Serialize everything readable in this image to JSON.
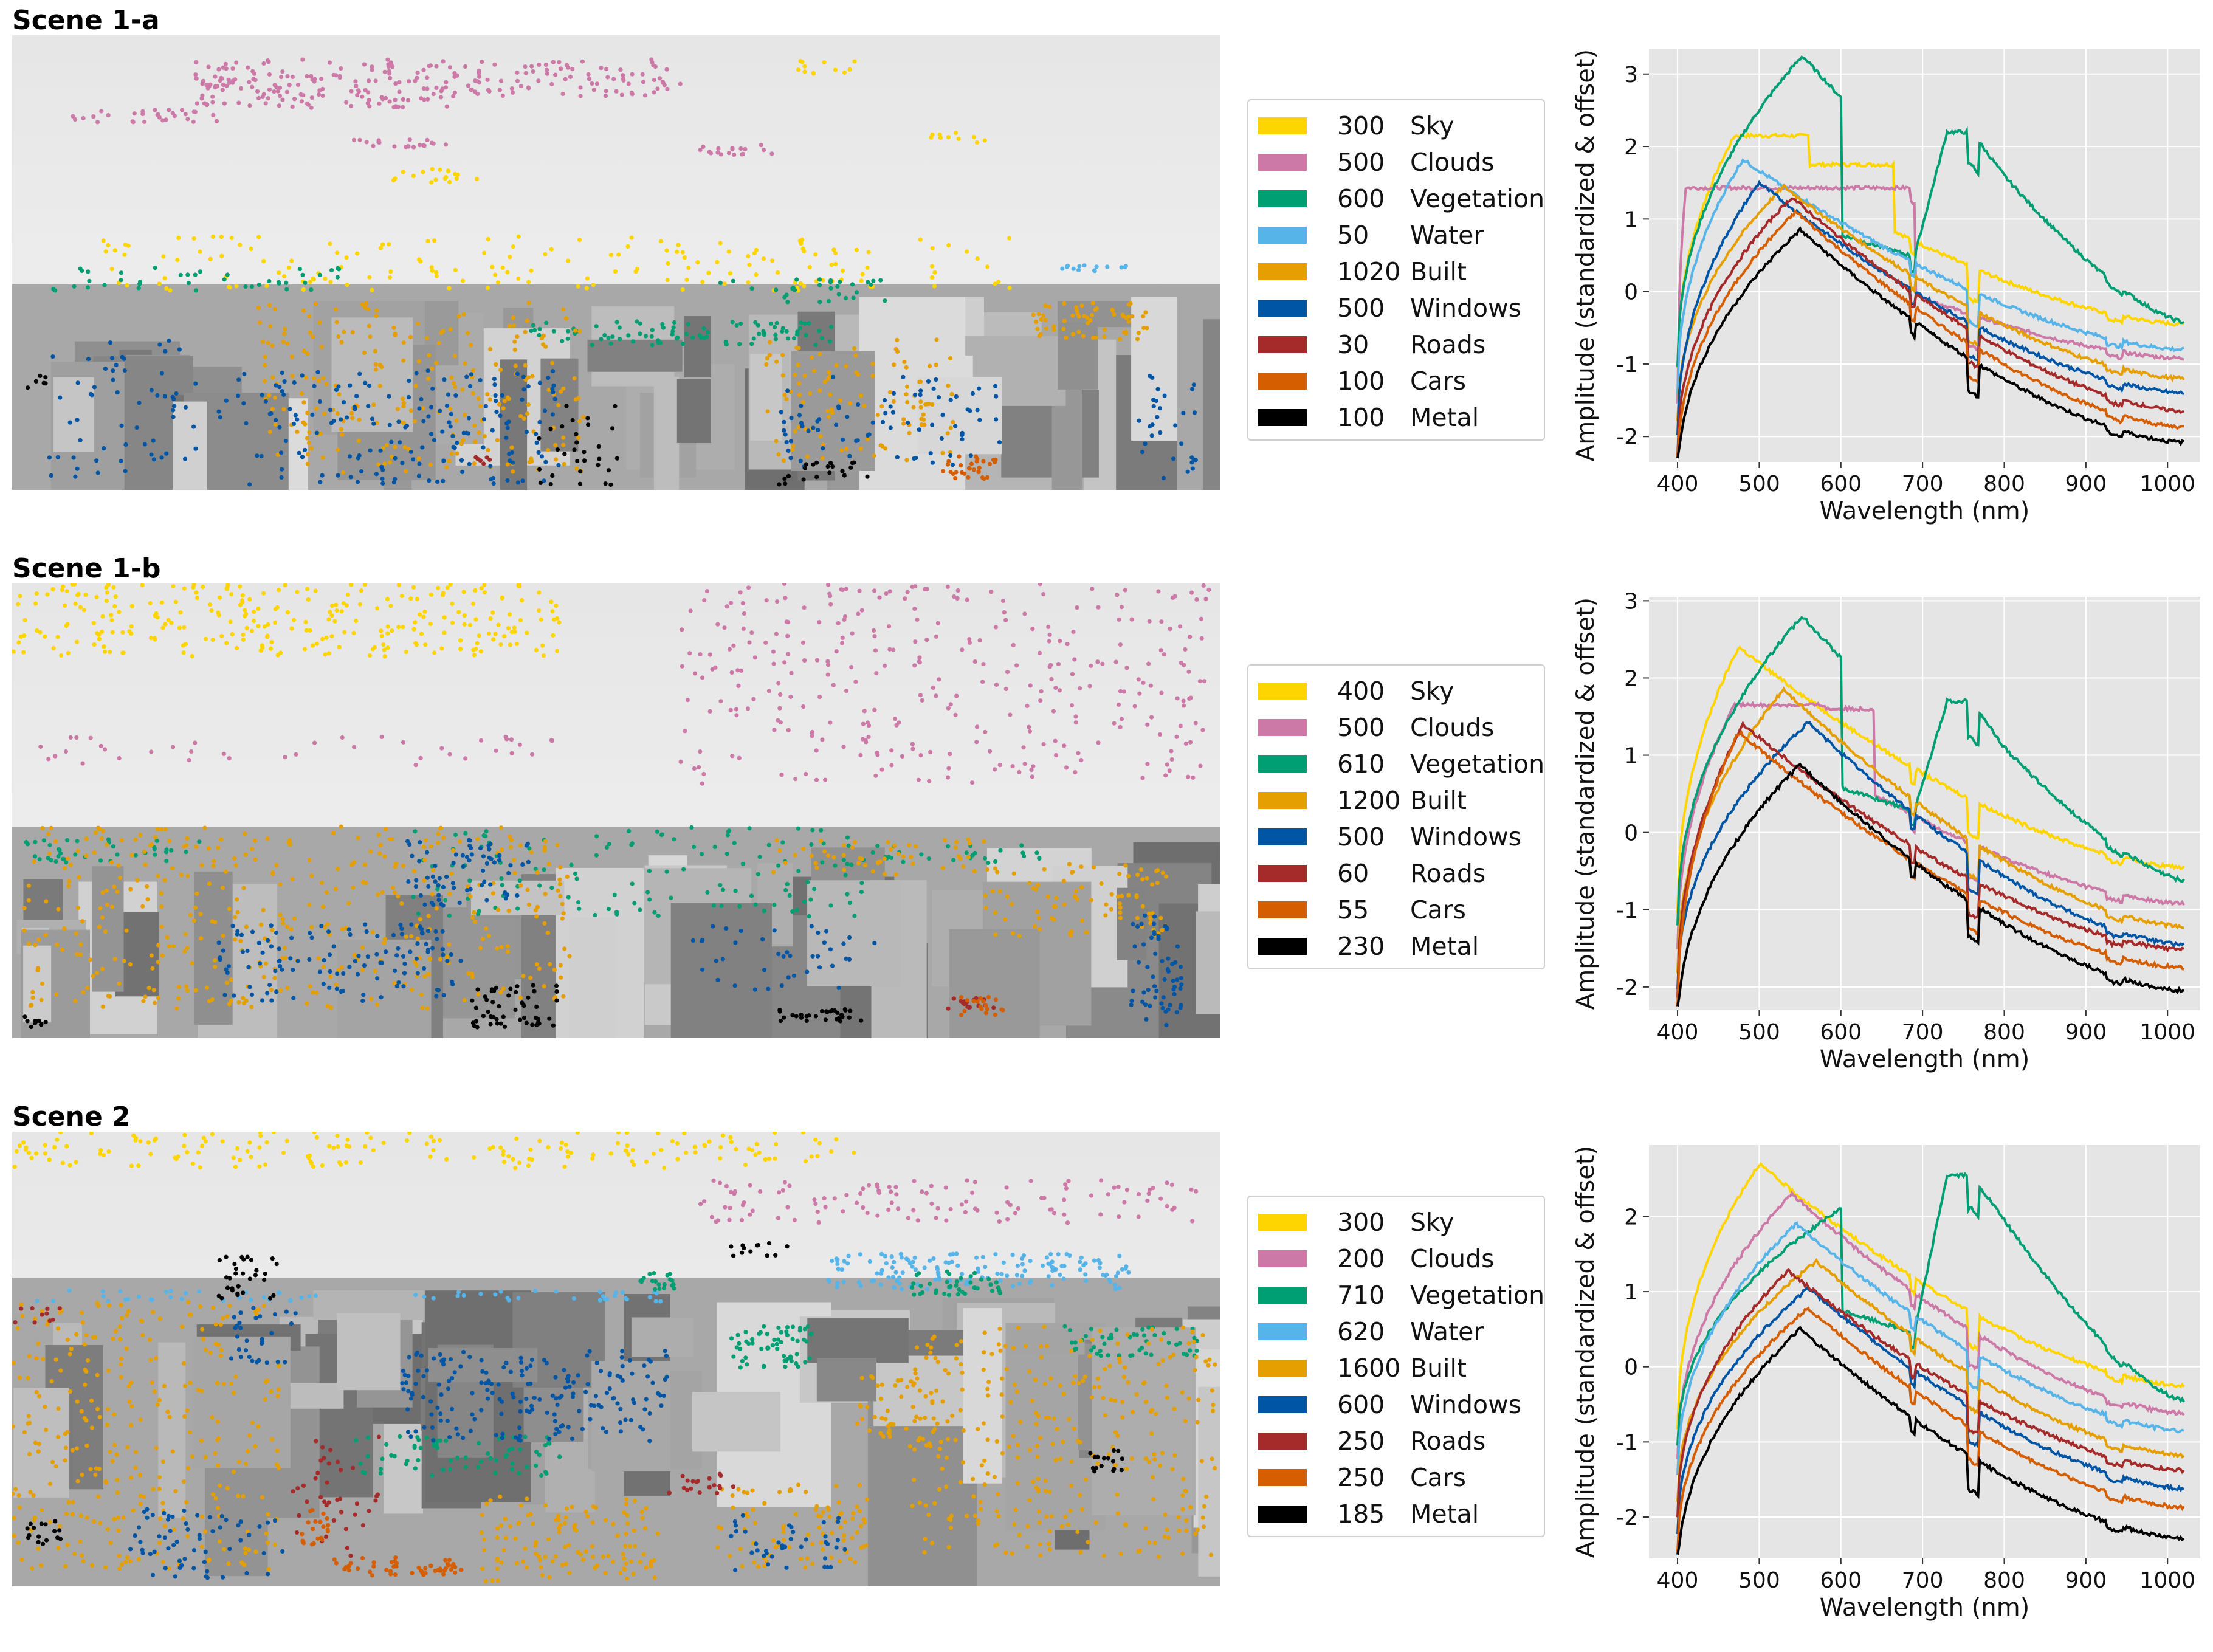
{
  "colors": {
    "Sky": "#ffd500",
    "Clouds": "#cc79a7",
    "Vegetation": "#009e73",
    "Water": "#56b4e9",
    "Built": "#e69f00",
    "Windows": "#0055a5",
    "Roads": "#a52a2a",
    "Cars": "#d55e00",
    "Metal": "#000000"
  },
  "scenes": [
    {
      "title": "Scene 1-a",
      "legend": [
        {
          "count": "300",
          "label": "Sky"
        },
        {
          "count": "500",
          "label": "Clouds"
        },
        {
          "count": "600",
          "label": "Vegetation"
        },
        {
          "count": "50",
          "label": "Water"
        },
        {
          "count": "1020",
          "label": "Built"
        },
        {
          "count": "500",
          "label": "Windows"
        },
        {
          "count": "30",
          "label": "Roads"
        },
        {
          "count": "100",
          "label": "Cars"
        },
        {
          "count": "100",
          "label": "Metal"
        }
      ]
    },
    {
      "title": "Scene 1-b",
      "legend": [
        {
          "count": "400",
          "label": "Sky"
        },
        {
          "count": "500",
          "label": "Clouds"
        },
        {
          "count": "610",
          "label": "Vegetation"
        },
        {
          "count": "1200",
          "label": "Built"
        },
        {
          "count": "500",
          "label": "Windows"
        },
        {
          "count": "60",
          "label": "Roads"
        },
        {
          "count": "55",
          "label": "Cars"
        },
        {
          "count": "230",
          "label": "Metal"
        }
      ]
    },
    {
      "title": "Scene 2",
      "legend": [
        {
          "count": "300",
          "label": "Sky"
        },
        {
          "count": "200",
          "label": "Clouds"
        },
        {
          "count": "710",
          "label": "Vegetation"
        },
        {
          "count": "620",
          "label": "Water"
        },
        {
          "count": "1600",
          "label": "Built"
        },
        {
          "count": "600",
          "label": "Windows"
        },
        {
          "count": "250",
          "label": "Roads"
        },
        {
          "count": "250",
          "label": "Cars"
        },
        {
          "count": "185",
          "label": "Metal"
        }
      ]
    }
  ],
  "chart_data": [
    {
      "type": "line",
      "xlabel": "Wavelength (nm)",
      "ylabel": "Amplitude (standardized & offset)",
      "xlim": [
        365,
        1040
      ],
      "ylim": [
        -2.35,
        3.35
      ],
      "xticks": [
        "400",
        "500",
        "600",
        "700",
        "800",
        "900",
        "1000"
      ],
      "yticks": [
        "-2",
        "-1",
        "0",
        "1",
        "2",
        "3"
      ],
      "series": [
        {
          "name": "Sky",
          "end": -0.45,
          "peak": 2.15,
          "peakAt": 470,
          "shape": "plateau",
          "plateauEnd": 560,
          "plateauTo": 1.75,
          "plateauEnd2": 665
        },
        {
          "name": "Clouds",
          "end": -0.92,
          "peak": 1.43,
          "peakAt": 410,
          "shape": "plateau",
          "plateauEnd": 690,
          "plateauTo": 1.43,
          "plateauEnd2": 690
        },
        {
          "name": "Vegetation",
          "end": -0.42,
          "peak": 3.25,
          "peakAt": 553,
          "shape": "veg",
          "nir": 2.2
        },
        {
          "name": "Water",
          "end": -0.8,
          "peak": 1.82,
          "peakAt": 480
        },
        {
          "name": "Built",
          "end": -1.2,
          "peak": 1.45,
          "peakAt": 530
        },
        {
          "name": "Windows",
          "end": -1.4,
          "peak": 1.5,
          "peakAt": 500
        },
        {
          "name": "Roads",
          "end": -1.65,
          "peak": 1.3,
          "peakAt": 540
        },
        {
          "name": "Cars",
          "end": -1.87,
          "peak": 1.1,
          "peakAt": 545
        },
        {
          "name": "Metal",
          "end": -2.08,
          "peak": 0.85,
          "peakAt": 550
        }
      ]
    },
    {
      "type": "line",
      "xlabel": "Wavelength (nm)",
      "ylabel": "Amplitude (standardized & offset)",
      "xlim": [
        365,
        1040
      ],
      "ylim": [
        -2.3,
        3.05
      ],
      "xticks": [
        "400",
        "500",
        "600",
        "700",
        "800",
        "900",
        "1000"
      ],
      "yticks": [
        "-2",
        "-1",
        "0",
        "1",
        "2",
        "3"
      ],
      "series": [
        {
          "name": "Sky",
          "end": -0.45,
          "peak": 2.4,
          "peakAt": 475
        },
        {
          "name": "Clouds",
          "end": -0.92,
          "peak": 1.65,
          "peakAt": 470,
          "shape": "plateau",
          "plateauEnd": 580,
          "plateauTo": 1.6,
          "plateauEnd2": 640
        },
        {
          "name": "Vegetation",
          "end": -0.62,
          "peak": 2.8,
          "peakAt": 553,
          "shape": "veg",
          "nir": 1.7
        },
        {
          "name": "Built",
          "end": -1.22,
          "peak": 1.85,
          "peakAt": 530
        },
        {
          "name": "Windows",
          "end": -1.45,
          "peak": 1.42,
          "peakAt": 560
        },
        {
          "name": "Roads",
          "end": -1.52,
          "peak": 1.4,
          "peakAt": 480
        },
        {
          "name": "Cars",
          "end": -1.75,
          "peak": 1.3,
          "peakAt": 475
        },
        {
          "name": "Metal",
          "end": -2.05,
          "peak": 0.88,
          "peakAt": 550
        }
      ]
    },
    {
      "type": "line",
      "xlabel": "Wavelength (nm)",
      "ylabel": "Amplitude (standardized & offset)",
      "xlim": [
        365,
        1040
      ],
      "ylim": [
        -2.55,
        2.95
      ],
      "xticks": [
        "400",
        "500",
        "600",
        "700",
        "800",
        "900",
        "1000"
      ],
      "yticks": [
        "-2",
        "-1",
        "0",
        "1",
        "2"
      ],
      "series": [
        {
          "name": "Sky",
          "end": -0.25,
          "peak": 2.7,
          "peakAt": 500
        },
        {
          "name": "Clouds",
          "end": -0.62,
          "peak": 2.3,
          "peakAt": 540
        },
        {
          "name": "Vegetation",
          "end": -0.45,
          "peak": 2.1,
          "peakAt": 600,
          "shape": "veg",
          "nir": 2.55
        },
        {
          "name": "Water",
          "end": -0.85,
          "peak": 1.9,
          "peakAt": 545
        },
        {
          "name": "Built",
          "end": -1.18,
          "peak": 1.4,
          "peakAt": 570
        },
        {
          "name": "Windows",
          "end": -1.62,
          "peak": 1.05,
          "peakAt": 560
        },
        {
          "name": "Roads",
          "end": -1.38,
          "peak": 1.28,
          "peakAt": 535
        },
        {
          "name": "Cars",
          "end": -1.87,
          "peak": 0.78,
          "peakAt": 560
        },
        {
          "name": "Metal",
          "end": -2.28,
          "peak": 0.5,
          "peakAt": 550
        }
      ]
    }
  ]
}
